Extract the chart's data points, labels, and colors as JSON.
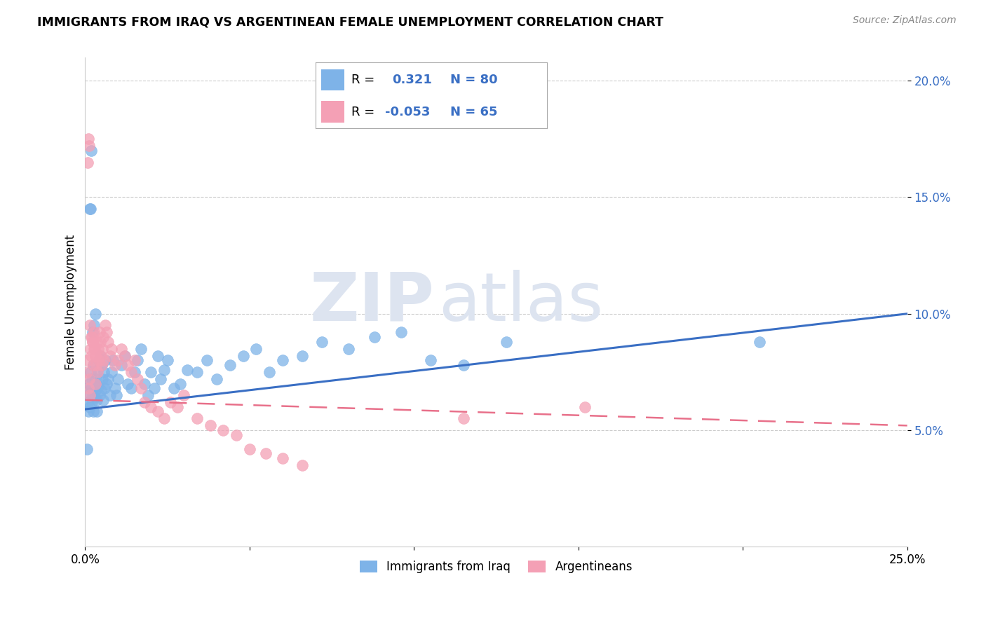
{
  "title": "IMMIGRANTS FROM IRAQ VS ARGENTINEAN FEMALE UNEMPLOYMENT CORRELATION CHART",
  "source": "Source: ZipAtlas.com",
  "ylabel": "Female Unemployment",
  "x_min": 0.0,
  "x_max": 0.25,
  "y_min": 0.0,
  "y_max": 0.21,
  "x_ticks": [
    0.0,
    0.05,
    0.1,
    0.15,
    0.2,
    0.25
  ],
  "x_tick_labels": [
    "0.0%",
    "",
    "",
    "",
    "",
    "25.0%"
  ],
  "y_ticks": [
    0.05,
    0.1,
    0.15,
    0.2
  ],
  "y_tick_labels": [
    "5.0%",
    "10.0%",
    "15.0%",
    "20.0%"
  ],
  "legend1_label": "Immigrants from Iraq",
  "legend2_label": "Argentineans",
  "r1": 0.321,
  "n1": 80,
  "r2": -0.053,
  "n2": 65,
  "color1": "#7eb3e8",
  "color2": "#f4a0b5",
  "line_color1": "#3a6fc4",
  "line_color2": "#e8708a",
  "watermark_color": "#dde4f0",
  "blue_line_x0": 0.0,
  "blue_line_y0": 0.059,
  "blue_line_x1": 0.25,
  "blue_line_y1": 0.1,
  "pink_line_x0": 0.0,
  "pink_line_y0": 0.063,
  "pink_line_x1": 0.25,
  "pink_line_y1": 0.052,
  "blue_points_x": [
    0.0008,
    0.001,
    0.0012,
    0.0014,
    0.0015,
    0.0016,
    0.0018,
    0.002,
    0.0022,
    0.0024,
    0.0025,
    0.0028,
    0.003,
    0.0032,
    0.0034,
    0.0036,
    0.0038,
    0.004,
    0.0042,
    0.0044,
    0.0046,
    0.0048,
    0.005,
    0.0052,
    0.0054,
    0.0056,
    0.0058,
    0.006,
    0.0065,
    0.007,
    0.0075,
    0.008,
    0.0085,
    0.009,
    0.0095,
    0.01,
    0.011,
    0.012,
    0.013,
    0.014,
    0.015,
    0.016,
    0.017,
    0.018,
    0.019,
    0.02,
    0.021,
    0.022,
    0.023,
    0.024,
    0.025,
    0.027,
    0.029,
    0.031,
    0.034,
    0.037,
    0.04,
    0.044,
    0.048,
    0.052,
    0.056,
    0.06,
    0.066,
    0.072,
    0.08,
    0.088,
    0.096,
    0.105,
    0.115,
    0.128,
    0.0014,
    0.0016,
    0.0018,
    0.002,
    0.0022,
    0.0026,
    0.003,
    0.0035,
    0.0005,
    0.205
  ],
  "blue_points_y": [
    0.062,
    0.058,
    0.07,
    0.066,
    0.06,
    0.075,
    0.068,
    0.072,
    0.065,
    0.078,
    0.058,
    0.064,
    0.07,
    0.067,
    0.072,
    0.063,
    0.076,
    0.069,
    0.08,
    0.065,
    0.082,
    0.067,
    0.078,
    0.072,
    0.063,
    0.075,
    0.068,
    0.08,
    0.07,
    0.072,
    0.065,
    0.075,
    0.08,
    0.068,
    0.065,
    0.072,
    0.078,
    0.082,
    0.07,
    0.068,
    0.075,
    0.08,
    0.085,
    0.07,
    0.065,
    0.075,
    0.068,
    0.082,
    0.072,
    0.076,
    0.08,
    0.068,
    0.07,
    0.076,
    0.075,
    0.08,
    0.072,
    0.078,
    0.082,
    0.085,
    0.075,
    0.08,
    0.082,
    0.088,
    0.085,
    0.09,
    0.092,
    0.08,
    0.078,
    0.088,
    0.145,
    0.145,
    0.17,
    0.062,
    0.092,
    0.095,
    0.1,
    0.058,
    0.042,
    0.088
  ],
  "pink_points_x": [
    0.0005,
    0.0008,
    0.001,
    0.0012,
    0.0014,
    0.0016,
    0.0018,
    0.002,
    0.0022,
    0.0024,
    0.0026,
    0.0028,
    0.003,
    0.0032,
    0.0034,
    0.0036,
    0.0038,
    0.004,
    0.0042,
    0.0044,
    0.0046,
    0.0048,
    0.005,
    0.0052,
    0.0054,
    0.0056,
    0.006,
    0.0065,
    0.007,
    0.0075,
    0.008,
    0.009,
    0.01,
    0.011,
    0.012,
    0.013,
    0.014,
    0.015,
    0.016,
    0.017,
    0.018,
    0.02,
    0.022,
    0.024,
    0.026,
    0.028,
    0.03,
    0.034,
    0.038,
    0.042,
    0.046,
    0.05,
    0.055,
    0.06,
    0.066,
    0.0008,
    0.001,
    0.0012,
    0.0015,
    0.0018,
    0.0022,
    0.0026,
    0.003,
    0.115,
    0.152
  ],
  "pink_points_y": [
    0.075,
    0.08,
    0.068,
    0.072,
    0.065,
    0.085,
    0.082,
    0.09,
    0.088,
    0.078,
    0.092,
    0.085,
    0.07,
    0.082,
    0.078,
    0.088,
    0.075,
    0.085,
    0.08,
    0.092,
    0.088,
    0.082,
    0.078,
    0.085,
    0.09,
    0.08,
    0.095,
    0.092,
    0.088,
    0.082,
    0.085,
    0.078,
    0.08,
    0.085,
    0.082,
    0.078,
    0.075,
    0.08,
    0.072,
    0.068,
    0.062,
    0.06,
    0.058,
    0.055,
    0.062,
    0.06,
    0.065,
    0.055,
    0.052,
    0.05,
    0.048,
    0.042,
    0.04,
    0.038,
    0.035,
    0.165,
    0.175,
    0.172,
    0.095,
    0.09,
    0.088,
    0.085,
    0.082,
    0.055,
    0.06
  ]
}
